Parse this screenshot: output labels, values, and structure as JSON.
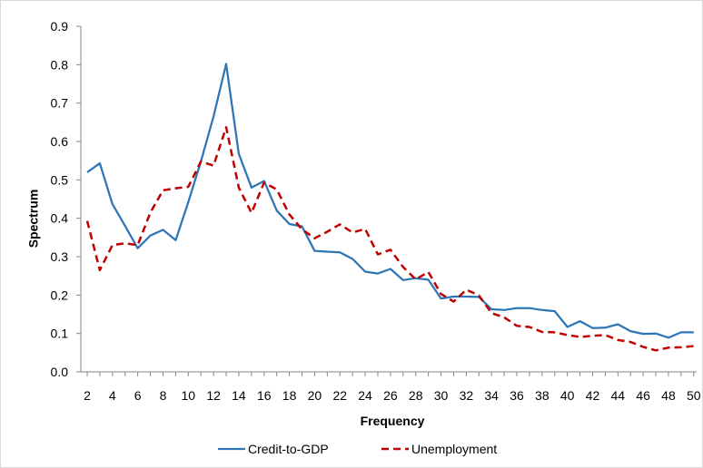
{
  "chart_data": {
    "type": "line",
    "title": "",
    "xlabel": "Frequency",
    "ylabel": "Spectrum",
    "xlim": [
      2,
      50
    ],
    "ylim": [
      0,
      0.9
    ],
    "x_ticks": [
      2,
      4,
      6,
      8,
      10,
      12,
      14,
      16,
      18,
      20,
      22,
      24,
      26,
      28,
      30,
      32,
      34,
      36,
      38,
      40,
      42,
      44,
      46,
      48,
      50
    ],
    "y_ticks": [
      "0.0",
      "0.1",
      "0.2",
      "0.3",
      "0.4",
      "0.5",
      "0.6",
      "0.7",
      "0.8",
      "0.9"
    ],
    "grid": false,
    "legend_position": "bottom",
    "x": [
      2,
      3,
      4,
      5,
      6,
      7,
      8,
      9,
      10,
      11,
      12,
      13,
      14,
      15,
      16,
      17,
      18,
      19,
      20,
      21,
      22,
      23,
      24,
      25,
      26,
      27,
      28,
      29,
      30,
      31,
      32,
      33,
      34,
      35,
      36,
      37,
      38,
      39,
      40,
      41,
      42,
      43,
      44,
      45,
      46,
      47,
      48,
      49,
      50
    ],
    "series": [
      {
        "name": "Credit-to-GDP",
        "color": "#2e75b6",
        "style": "solid",
        "values": [
          0.52,
          0.543,
          0.437,
          0.38,
          0.322,
          0.355,
          0.37,
          0.343,
          0.442,
          0.548,
          0.665,
          0.802,
          0.568,
          0.48,
          0.497,
          0.42,
          0.385,
          0.379,
          0.315,
          0.313,
          0.311,
          0.294,
          0.261,
          0.256,
          0.268,
          0.239,
          0.244,
          0.24,
          0.191,
          0.196,
          0.196,
          0.195,
          0.163,
          0.161,
          0.166,
          0.166,
          0.161,
          0.158,
          0.117,
          0.132,
          0.114,
          0.115,
          0.124,
          0.106,
          0.099,
          0.1,
          0.089,
          0.103,
          0.103
        ]
      },
      {
        "name": "Unemployment",
        "color": "#c00000",
        "style": "dashed",
        "values": [
          0.393,
          0.265,
          0.33,
          0.335,
          0.33,
          0.415,
          0.473,
          0.478,
          0.482,
          0.548,
          0.537,
          0.637,
          0.48,
          0.414,
          0.493,
          0.475,
          0.41,
          0.371,
          0.348,
          0.365,
          0.384,
          0.363,
          0.372,
          0.306,
          0.318,
          0.273,
          0.241,
          0.26,
          0.203,
          0.183,
          0.214,
          0.199,
          0.153,
          0.142,
          0.12,
          0.117,
          0.104,
          0.103,
          0.096,
          0.091,
          0.094,
          0.096,
          0.083,
          0.078,
          0.065,
          0.056,
          0.063,
          0.064,
          0.067
        ]
      }
    ]
  }
}
